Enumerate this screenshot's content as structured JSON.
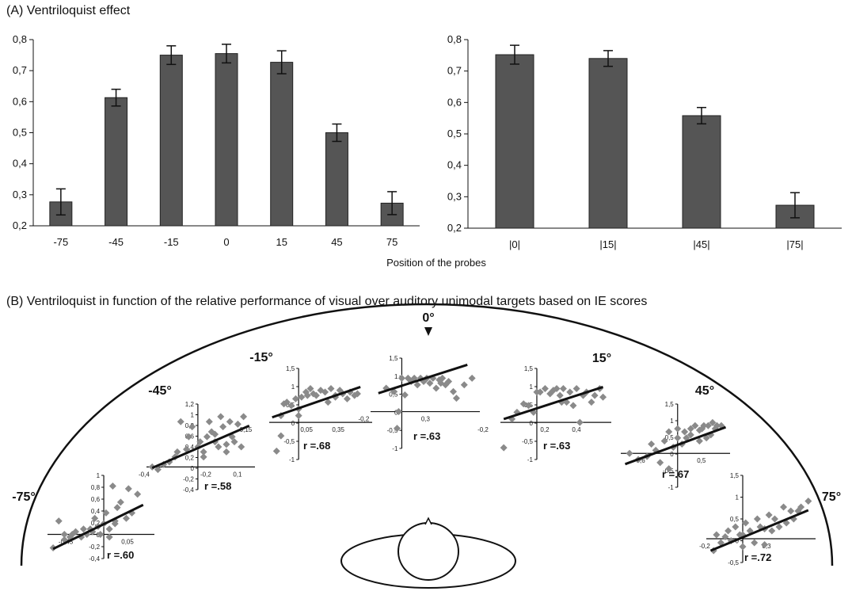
{
  "heading_a": "(A) Ventriloquist effect",
  "heading_b": "(B) Ventriloquist in function of the relative performance of visual over auditory unimodal targets based on IE scores",
  "chart_data": [
    {
      "type": "bar",
      "categories": [
        "-75",
        "-45",
        "-15",
        "0",
        "15",
        "45",
        "75"
      ],
      "values": [
        0.277,
        0.613,
        0.75,
        0.755,
        0.727,
        0.5,
        0.273
      ],
      "errors": [
        0.042,
        0.027,
        0.03,
        0.03,
        0.037,
        0.028,
        0.037
      ],
      "ylim": [
        0.2,
        0.8
      ],
      "yticks": [
        "0,2",
        "0,3",
        "0,4",
        "0,5",
        "0,6",
        "0,7",
        "0,8"
      ],
      "xlabel": "Position of the probes",
      "ylabel": "",
      "bar_color": "#555555"
    },
    {
      "type": "bar",
      "categories": [
        "|0|",
        "|15|",
        "|45|",
        "|75|"
      ],
      "values": [
        0.752,
        0.74,
        0.558,
        0.273
      ],
      "errors": [
        0.03,
        0.025,
        0.026,
        0.04
      ],
      "ylim": [
        0.2,
        0.8
      ],
      "yticks": [
        "0,2",
        "0,3",
        "0,4",
        "0,5",
        "0,6",
        "0,7",
        "0,8"
      ],
      "xlabel": "",
      "ylabel": "",
      "bar_color": "#555555"
    },
    {
      "type": "scatter",
      "position": "-75°",
      "r_label": "r =.60",
      "xticks": [
        "-0,45",
        "0,05"
      ],
      "yticks": [
        "1",
        "0,8",
        "0,6",
        "0,4",
        "0,2",
        "0",
        "-0,2",
        "-0,4"
      ],
      "xlim": [
        -0.5,
        0.45
      ],
      "ylim": [
        -0.45,
        1.1
      ],
      "x": [
        -0.45,
        -0.4,
        -0.35,
        -0.3,
        -0.28,
        -0.25,
        -0.2,
        -0.18,
        -0.15,
        -0.12,
        -0.1,
        -0.08,
        -0.05,
        -0.03,
        0,
        0.02,
        0.05,
        0.08,
        0.1,
        0.12,
        0.15,
        0.2,
        0.22,
        0.25,
        0.3,
        -0.35,
        0.05,
        0.1
      ],
      "y": [
        -0.25,
        0.25,
        -0.1,
        -0.05,
        0.0,
        0.05,
        -0.05,
        0.1,
        0.0,
        0.1,
        0.05,
        0.3,
        0.15,
        0.0,
        0.2,
        0.4,
        0.1,
        0.9,
        0.2,
        0.5,
        0.6,
        0.3,
        0.85,
        0.4,
        0.75,
        0.0,
        -0.05,
        0.25
      ],
      "fit": [
        [
          -0.45,
          -0.27
        ],
        [
          0.35,
          0.55
        ]
      ]
    },
    {
      "type": "scatter",
      "position": "-45°",
      "r_label": "r =.58",
      "xticks": [
        "-0,4",
        "-0,2",
        "0,1"
      ],
      "yticks": [
        "1,2",
        "1",
        "0,8",
        "0,6",
        "0,4",
        "0,2",
        "0",
        "-0,2",
        "-0,4"
      ],
      "xlim": [
        -0.45,
        0.5
      ],
      "ylim": [
        -0.45,
        1.25
      ],
      "x": [
        -0.4,
        -0.35,
        -0.3,
        -0.25,
        -0.2,
        -0.18,
        -0.15,
        -0.1,
        -0.08,
        -0.05,
        0,
        0.02,
        0.05,
        0.08,
        0.1,
        0.12,
        0.15,
        0.18,
        0.2,
        0.22,
        0.25,
        0.28,
        0.3,
        0.32,
        0.35,
        0.38,
        0.4,
        0.05,
        0.15,
        0.25
      ],
      "y": [
        0.0,
        -0.05,
        0.05,
        0.1,
        0.2,
        0.3,
        0.9,
        0.35,
        0.6,
        0.8,
        0.4,
        0.5,
        0.3,
        0.6,
        0.9,
        0.7,
        0.5,
        0.4,
        1.0,
        0.8,
        0.3,
        0.9,
        0.6,
        0.5,
        0.85,
        0.4,
        1.0,
        0.2,
        0.65,
        0.45
      ],
      "fit": [
        [
          -0.4,
          -0.02
        ],
        [
          0.45,
          0.82
        ]
      ]
    },
    {
      "type": "scatter",
      "position": "-15°",
      "r_label": "r =.68",
      "xticks": [
        "-0,15",
        "0,05",
        "0,35"
      ],
      "yticks": [
        "1,5",
        "1",
        "0,5",
        "0",
        "-0,5",
        "-1"
      ],
      "xlim": [
        -0.2,
        0.5
      ],
      "ylim": [
        -1.1,
        1.6
      ],
      "x": [
        -0.15,
        -0.12,
        -0.1,
        -0.08,
        -0.05,
        -0.02,
        0,
        0.02,
        0.05,
        0.08,
        0.1,
        0.12,
        0.15,
        0.18,
        0.2,
        0.22,
        0.25,
        0.28,
        0.3,
        0.33,
        0.35,
        0.38,
        0.4,
        -0.12,
        0.0,
        0.06,
        0.25
      ],
      "y": [
        -0.85,
        0.2,
        0.55,
        0.6,
        0.5,
        0.7,
        0.4,
        0.75,
        0.9,
        1.0,
        0.85,
        0.8,
        0.95,
        0.9,
        0.6,
        1.0,
        0.8,
        0.95,
        0.85,
        0.7,
        0.9,
        0.8,
        0.85,
        -0.4,
        0.2,
        0.8,
        0.75
      ],
      "fit": [
        [
          -0.18,
          0.15
        ],
        [
          0.42,
          1.05
        ]
      ]
    },
    {
      "type": "scatter",
      "position": "0°",
      "r_label": "r =.63",
      "xticks": [
        "-0,2",
        "0,3"
      ],
      "yticks": [
        "1,5",
        "1",
        "0,5",
        "0",
        "-0,5",
        "-1"
      ],
      "xlim": [
        -0.2,
        0.5
      ],
      "ylim": [
        -1.1,
        1.6
      ],
      "x": [
        -0.1,
        -0.05,
        -0.02,
        0,
        0.02,
        0.04,
        0.06,
        0.08,
        0.1,
        0.12,
        0.14,
        0.16,
        0.18,
        0.2,
        0.22,
        0.24,
        0.26,
        0.28,
        0.3,
        0.33,
        0.35,
        0.4,
        0.45,
        -0.03,
        0.15,
        0.25
      ],
      "y": [
        0.7,
        0.6,
        0.0,
        1.0,
        0.5,
        1.0,
        0.9,
        1.0,
        0.8,
        1.0,
        0.9,
        1.0,
        0.85,
        1.0,
        0.7,
        0.95,
        1.0,
        0.8,
        0.9,
        0.6,
        0.4,
        0.8,
        1.0,
        -0.5,
        0.95,
        0.85
      ],
      "fit": [
        [
          -0.15,
          0.55
        ],
        [
          0.42,
          1.4
        ]
      ]
    },
    {
      "type": "scatter",
      "position": "15°",
      "r_label": "r =.63",
      "xticks": [
        "-0,2",
        "0,2",
        "0,4"
      ],
      "yticks": [
        "1,5",
        "1",
        "0,5",
        "0",
        "-0,5",
        "-1"
      ],
      "xlim": [
        -0.22,
        0.45
      ],
      "ylim": [
        -1.1,
        1.6
      ],
      "x": [
        -0.2,
        -0.15,
        -0.12,
        -0.08,
        -0.05,
        0,
        0.02,
        0.05,
        0.08,
        0.1,
        0.12,
        0.14,
        0.16,
        0.18,
        0.2,
        0.22,
        0.24,
        0.26,
        0.28,
        0.3,
        0.33,
        0.35,
        0.38,
        0.4,
        -0.02,
        0.15
      ],
      "y": [
        -0.75,
        0.1,
        0.3,
        0.55,
        0.5,
        0.9,
        0.9,
        1.0,
        0.85,
        0.95,
        1.0,
        0.8,
        1.0,
        0.6,
        0.9,
        0.5,
        1.0,
        0.0,
        0.8,
        0.9,
        0.6,
        0.8,
        1.0,
        0.75,
        0.3,
        0.6
      ],
      "fit": [
        [
          -0.2,
          0.1
        ],
        [
          0.4,
          1.05
        ]
      ]
    },
    {
      "type": "scatter",
      "position": "45°",
      "r_label": "r =.67",
      "xticks": [
        "-0,6",
        "0,5"
      ],
      "yticks": [
        "1,5",
        "1",
        "0,5",
        "0",
        "-0,5",
        "-1"
      ],
      "xlim": [
        -0.65,
        0.6
      ],
      "ylim": [
        -1.1,
        1.6
      ],
      "x": [
        -0.55,
        -0.45,
        -0.35,
        -0.3,
        -0.25,
        -0.2,
        -0.15,
        -0.1,
        -0.05,
        0,
        0.05,
        0.08,
        0.1,
        0.15,
        0.2,
        0.25,
        0.28,
        0.3,
        0.33,
        0.35,
        0.38,
        0.4,
        0.43,
        0.45,
        0.5,
        -0.1,
        0.0,
        0.15,
        0.25
      ],
      "y": [
        0.0,
        -0.2,
        -0.1,
        0.3,
        0.1,
        -0.3,
        0.4,
        0.7,
        0.2,
        0.8,
        0.3,
        0.7,
        0.5,
        0.8,
        0.9,
        0.4,
        0.8,
        0.9,
        0.5,
        0.9,
        0.6,
        1.0,
        0.8,
        0.9,
        0.9,
        -0.5,
        0.5,
        0.6,
        0.75
      ],
      "fit": [
        [
          -0.6,
          -0.35
        ],
        [
          0.55,
          0.85
        ]
      ]
    },
    {
      "type": "scatter",
      "position": "75°",
      "r_label": "r =.72",
      "xticks": [
        "-0,2",
        "0,3"
      ],
      "yticks": [
        "1,5",
        "1",
        "0,5",
        "0",
        "-0,5"
      ],
      "xlim": [
        -0.25,
        0.5
      ],
      "ylim": [
        -0.6,
        1.6
      ],
      "x": [
        -0.2,
        -0.18,
        -0.15,
        -0.12,
        -0.1,
        -0.08,
        -0.05,
        -0.02,
        0,
        0.02,
        0.05,
        0.08,
        0.1,
        0.12,
        0.15,
        0.18,
        0.2,
        0.22,
        0.25,
        0.28,
        0.3,
        0.33,
        0.35,
        0.38,
        0.4,
        0.45,
        0.0,
        0.15
      ],
      "y": [
        -0.3,
        0.1,
        -0.1,
        0.05,
        0.2,
        -0.05,
        0.3,
        0.1,
        -0.2,
        0.4,
        0.2,
        -0.1,
        0.5,
        0.3,
        -0.15,
        0.6,
        0.2,
        0.5,
        0.3,
        0.8,
        0.4,
        0.7,
        0.5,
        0.7,
        0.8,
        0.95,
        0.1,
        0.25
      ],
      "fit": [
        [
          -0.22,
          -0.3
        ],
        [
          0.45,
          0.72
        ]
      ]
    }
  ]
}
